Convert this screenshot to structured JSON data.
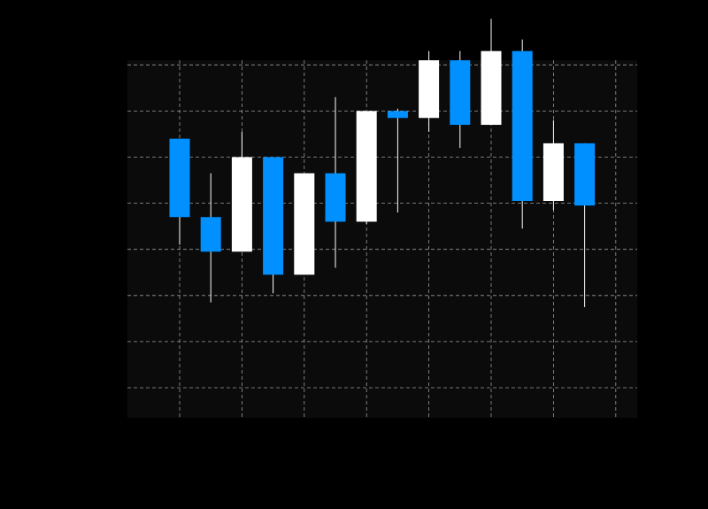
{
  "chart_data": {
    "type": "candlestick",
    "title": "",
    "xlabel": "",
    "ylabel": "",
    "grid": true,
    "colors": {
      "background": "#000000",
      "plot_background": "#0b0b0b",
      "grid": "#bdbdbd",
      "up": "#ffffff",
      "down": "#0090ff",
      "wick": "#ffffff"
    },
    "candles": [
      {
        "open": 6.9,
        "close": 5.2,
        "high": 6.9,
        "low": 4.6
      },
      {
        "open": 5.2,
        "close": 4.45,
        "high": 6.15,
        "low": 3.35
      },
      {
        "open": 4.45,
        "close": 6.5,
        "high": 7.05,
        "low": 4.45
      },
      {
        "open": 6.5,
        "close": 3.95,
        "high": 6.5,
        "low": 3.55
      },
      {
        "open": 3.95,
        "close": 6.15,
        "high": 6.15,
        "low": 3.95
      },
      {
        "open": 6.15,
        "close": 5.1,
        "high": 7.8,
        "low": 4.1
      },
      {
        "open": 5.1,
        "close": 7.5,
        "high": 7.5,
        "low": 5.05
      },
      {
        "open": 7.5,
        "close": 7.35,
        "high": 7.55,
        "low": 5.3
      },
      {
        "open": 7.35,
        "close": 8.6,
        "high": 8.8,
        "low": 7.05
      },
      {
        "open": 8.6,
        "close": 7.2,
        "high": 8.8,
        "low": 6.7
      },
      {
        "open": 7.2,
        "close": 8.8,
        "high": 9.5,
        "low": 7.2
      },
      {
        "open": 8.8,
        "close": 5.55,
        "high": 9.05,
        "low": 4.95
      },
      {
        "open": 5.55,
        "close": 6.8,
        "high": 7.3,
        "low": 5.35
      },
      {
        "open": 6.8,
        "close": 5.45,
        "high": 6.8,
        "low": 3.25
      }
    ]
  }
}
